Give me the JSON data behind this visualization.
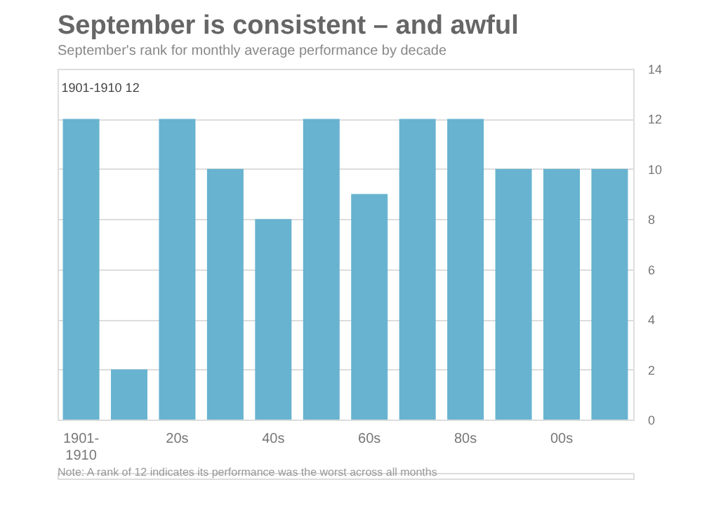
{
  "chart_data": {
    "type": "bar",
    "title": "September is consistent – and awful",
    "subtitle": "September's rank for monthly average performance by decade",
    "categories": [
      "1901-1910",
      null,
      "20s",
      null,
      "40s",
      null,
      "60s",
      null,
      "80s",
      null,
      "00s",
      null
    ],
    "values": [
      12,
      2,
      12,
      10,
      8,
      12,
      9,
      12,
      12,
      10,
      10,
      10
    ],
    "color": "#67b3d0",
    "ylim": [
      0,
      14
    ],
    "yticks": [
      0,
      2,
      4,
      6,
      8,
      10,
      12,
      14
    ],
    "grid": "y",
    "annotations": [
      {
        "text": "1901-1910 12",
        "x": "1901-1910",
        "y": 12
      },
      "Note: A rank of 12 indicates its performance was the worst across all months"
    ]
  }
}
